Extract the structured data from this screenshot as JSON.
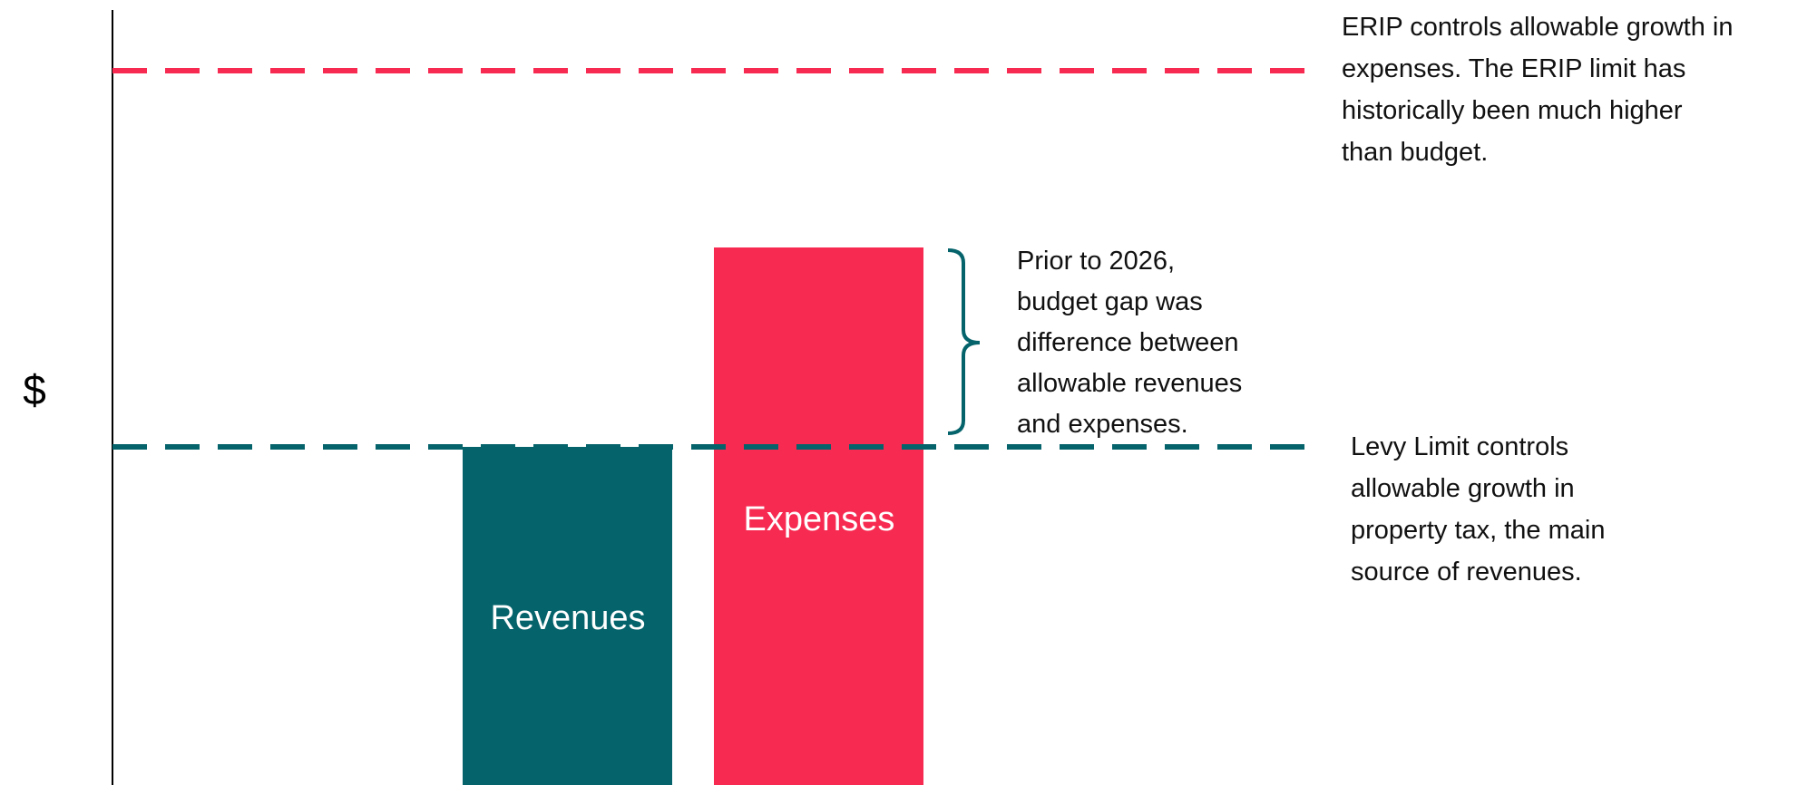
{
  "axis_label": "$",
  "bars": [
    {
      "label": "Revenues"
    },
    {
      "label": "Expenses"
    }
  ],
  "annotations": {
    "erip": {
      "lines": [
        "ERIP controls allowable growth in",
        "expenses. The ERIP limit has",
        "historically been much higher",
        "than budget."
      ]
    },
    "gap": {
      "lines": [
        "Prior to 2026,",
        "budget gap was",
        "difference between",
        "allowable revenues",
        "and expenses."
      ]
    },
    "levy": {
      "lines": [
        "Levy Limit controls",
        "allowable growth in",
        "property tax, the main",
        "source of revenues."
      ]
    }
  }
}
